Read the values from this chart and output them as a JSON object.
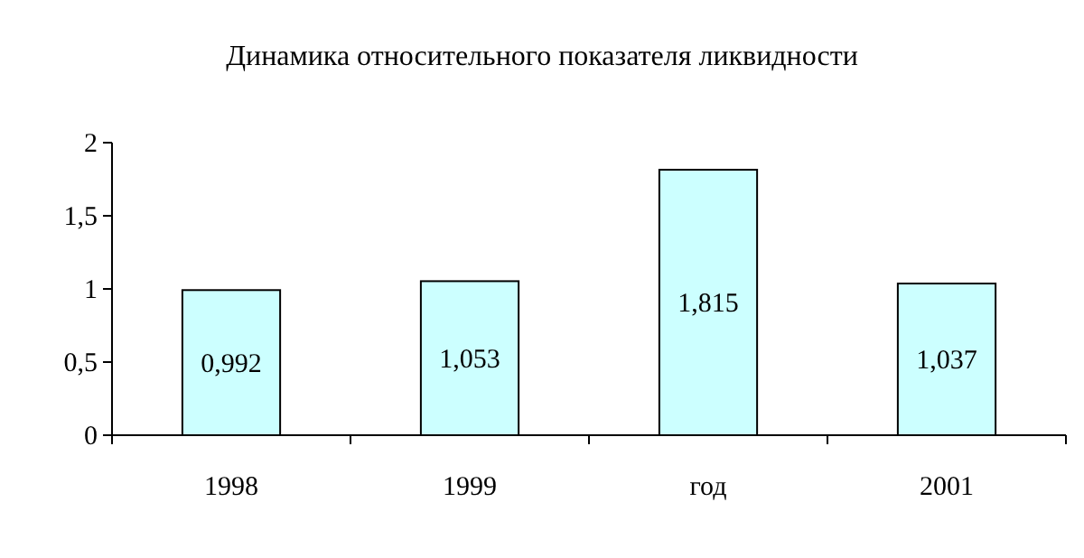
{
  "chart_data": {
    "type": "bar",
    "title": "Динамика относительного показателя ликвидности",
    "categories": [
      "1998",
      "1999",
      "год",
      "2001"
    ],
    "values": [
      0.992,
      1.053,
      1.815,
      1.037
    ],
    "value_labels": [
      "0,992",
      "1,053",
      "1,815",
      "1,037"
    ],
    "color": "#ccffff",
    "ylim": [
      0,
      2
    ],
    "yticks": [
      0,
      {
        "value": 0.5,
        "label": "0,5"
      },
      1,
      {
        "value": 1.5,
        "label": "1,5"
      },
      2
    ],
    "grid": false
  }
}
